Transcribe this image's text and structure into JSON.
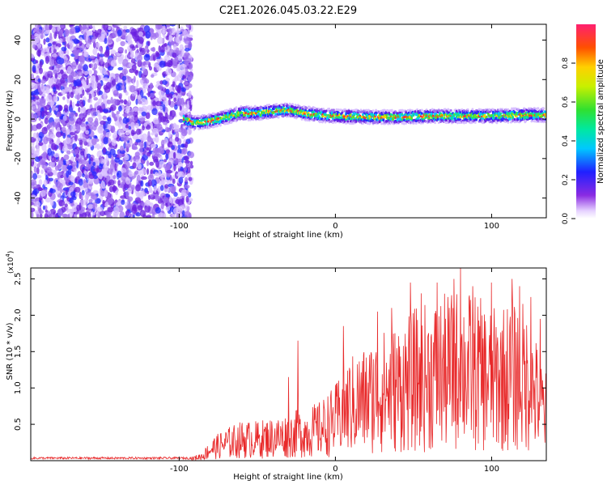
{
  "title": "C2E1.2026.045.03.22.E29",
  "colors": {
    "snr_line": "#e8292a",
    "axis": "#000000"
  },
  "chart_data": [
    {
      "type": "heatmap",
      "xlabel": "Height of straight line (km)",
      "ylabel": "Frequency (Hz)",
      "xlim": [
        -195,
        135
      ],
      "ylim": [
        -50,
        48
      ],
      "xticks": [
        -100,
        0,
        100
      ],
      "xtick_labels": [
        "-100",
        "0",
        "100"
      ],
      "yticks": [
        -40,
        -20,
        0,
        20,
        40
      ],
      "ytick_labels": [
        "-40",
        "-20",
        "0",
        "20",
        "40"
      ],
      "noise_region_x": [
        -195,
        -92
      ],
      "signal_center_hz": [
        [
          -97,
          0
        ],
        [
          -90,
          -2
        ],
        [
          -80,
          -1
        ],
        [
          -70,
          1
        ],
        [
          -60,
          3
        ],
        [
          -50,
          3
        ],
        [
          -40,
          4
        ],
        [
          -30,
          4.5
        ],
        [
          -20,
          3
        ],
        [
          -10,
          2
        ],
        [
          0,
          1.5
        ],
        [
          20,
          1
        ],
        [
          40,
          1
        ],
        [
          60,
          1.5
        ],
        [
          80,
          1.5
        ],
        [
          100,
          1.5
        ],
        [
          120,
          2
        ],
        [
          135,
          2
        ]
      ],
      "colorbar": {
        "label": "Normalized spectral amplitude",
        "range": [
          0,
          1
        ],
        "ticks": [
          0.0,
          0.2,
          0.4,
          0.6,
          0.8
        ],
        "tick_labels": [
          "0.0",
          "0.2",
          "0.4",
          "0.6",
          "0.8"
        ]
      }
    },
    {
      "type": "line",
      "xlabel": "Height of straight line (km)",
      "ylabel": "SNR (10 * v/v)",
      "y_multiplier_label": "(x10",
      "y_multiplier_exp": "4",
      "xlim": [
        -195,
        135
      ],
      "ylim": [
        0,
        2.65
      ],
      "xticks": [
        -100,
        0,
        100
      ],
      "xtick_labels": [
        "-100",
        "0",
        "100"
      ],
      "yticks": [
        0.5,
        1.0,
        1.5,
        2.0,
        2.5
      ],
      "ytick_labels": [
        "0.5",
        "1.0",
        "1.5",
        "2.0",
        "2.5"
      ],
      "envelope": {
        "x": [
          -195,
          -100,
          -92,
          -85,
          -80,
          -70,
          -60,
          -50,
          -40,
          -30,
          -25,
          -20,
          -10,
          0,
          5,
          10,
          20,
          30,
          40,
          50,
          60,
          70,
          80,
          90,
          100,
          110,
          120,
          125,
          130,
          135
        ],
        "y": [
          0.04,
          0.04,
          0.05,
          0.12,
          0.3,
          0.45,
          0.55,
          0.55,
          0.6,
          0.65,
          0.7,
          0.72,
          0.82,
          1.05,
          1.3,
          1.45,
          1.6,
          1.8,
          1.9,
          2.1,
          2.2,
          2.3,
          2.4,
          2.3,
          2.1,
          2.2,
          2.2,
          1.9,
          1.6,
          1.2
        ]
      },
      "peaks": [
        [
          -30,
          1.15
        ],
        [
          -24,
          1.65
        ],
        [
          5,
          1.85
        ],
        [
          27,
          2.05
        ],
        [
          36,
          2.1
        ],
        [
          48,
          2.45
        ],
        [
          55,
          2.3
        ],
        [
          65,
          2.45
        ],
        [
          76,
          2.5
        ],
        [
          80,
          2.65
        ],
        [
          88,
          2.4
        ],
        [
          100,
          2.45
        ],
        [
          113,
          2.5
        ],
        [
          118,
          2.4
        ],
        [
          125,
          2.25
        ],
        [
          131,
          1.95
        ]
      ]
    }
  ]
}
